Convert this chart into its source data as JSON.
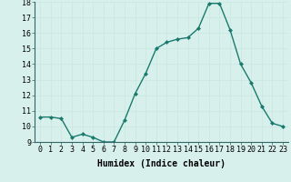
{
  "x": [
    0,
    1,
    2,
    3,
    4,
    5,
    6,
    7,
    8,
    9,
    10,
    11,
    12,
    13,
    14,
    15,
    16,
    17,
    18,
    19,
    20,
    21,
    22,
    23
  ],
  "y": [
    10.6,
    10.6,
    10.5,
    9.3,
    9.5,
    9.3,
    9.0,
    9.0,
    10.4,
    12.1,
    13.4,
    15.0,
    15.4,
    15.6,
    15.7,
    16.3,
    17.9,
    17.9,
    16.2,
    14.0,
    12.8,
    11.3,
    10.2,
    10.0
  ],
  "line_color": "#1a7a6e",
  "marker": "D",
  "marker_size": 2.0,
  "line_width": 1.0,
  "xlabel": "Humidex (Indice chaleur)",
  "xlabel_fontsize": 7,
  "xlabel_weight": "bold",
  "ylim": [
    9,
    18
  ],
  "xlim": [
    -0.5,
    23.5
  ],
  "yticks": [
    9,
    10,
    11,
    12,
    13,
    14,
    15,
    16,
    17,
    18
  ],
  "xtick_labels": [
    "0",
    "1",
    "2",
    "3",
    "4",
    "5",
    "6",
    "7",
    "8",
    "9",
    "10",
    "11",
    "12",
    "13",
    "14",
    "15",
    "16",
    "17",
    "18",
    "19",
    "20",
    "21",
    "22",
    "23"
  ],
  "grid_color": "#c8e8e0",
  "bg_color": "#d8f0ec",
  "tick_fontsize": 6,
  "spine_color": "#336666"
}
